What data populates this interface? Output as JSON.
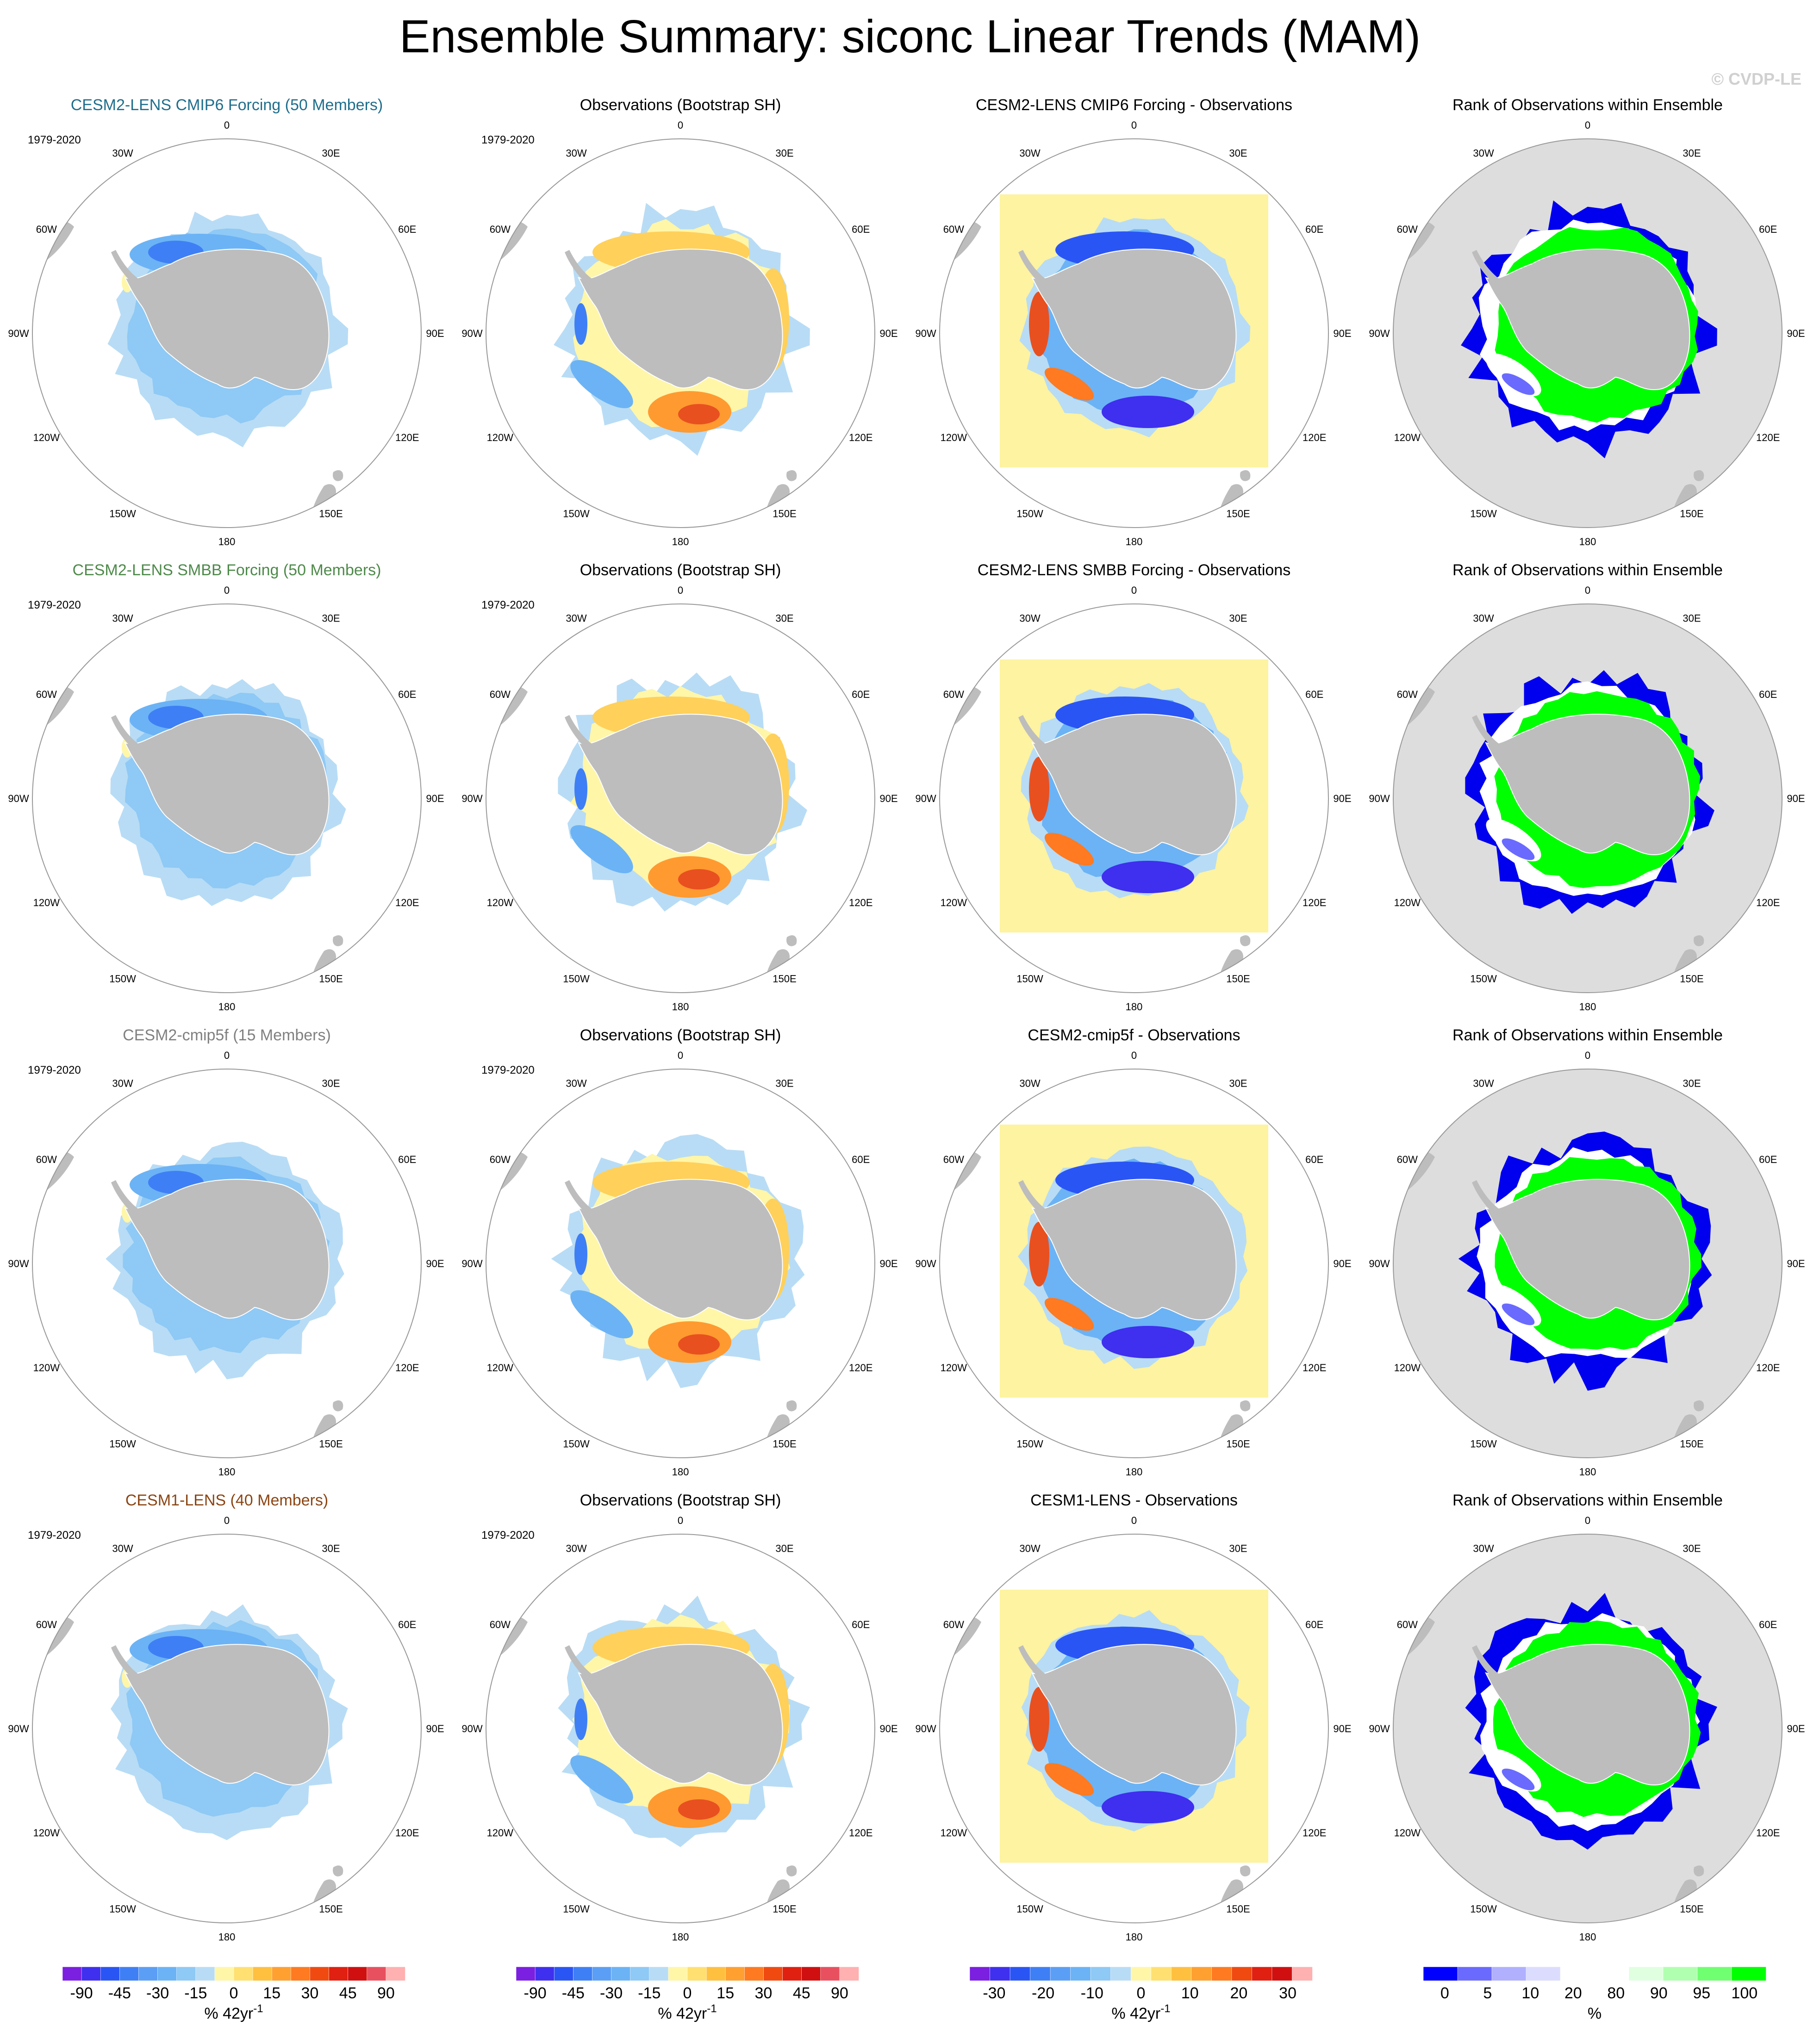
{
  "page": {
    "title": "Ensemble Summary: siconc Linear Trends (MAM)",
    "watermark": "© CVDP-LE",
    "period": "1979-2020"
  },
  "longitude_labels": {
    "top": "0",
    "bottom": "180",
    "left": [
      "30W",
      "60W",
      "90W",
      "120W",
      "150W"
    ],
    "right": [
      "30E",
      "60E",
      "90E",
      "120E",
      "150E"
    ]
  },
  "rows": [
    {
      "model_title": "CESM2-LENS CMIP6 Forcing (50 Members)",
      "model_title_color": "#1f6e8c",
      "obs_title": "Observations (Bootstrap SH)",
      "diff_title": "CESM2-LENS CMIP6 Forcing - Observations",
      "rank_title": "Rank of Observations within Ensemble"
    },
    {
      "model_title": "CESM2-LENS SMBB Forcing (50 Members)",
      "model_title_color": "#4e8a4a",
      "obs_title": "Observations (Bootstrap SH)",
      "diff_title": "CESM2-LENS SMBB Forcing - Observations",
      "rank_title": "Rank of Observations within Ensemble"
    },
    {
      "model_title": "CESM2-cmip5f (15 Members)",
      "model_title_color": "#808080",
      "obs_title": "Observations (Bootstrap SH)",
      "diff_title": "CESM2-cmip5f - Observations",
      "rank_title": "Rank of Observations within Ensemble"
    },
    {
      "model_title": "CESM1-LENS (40 Members)",
      "model_title_color": "#8b4513",
      "obs_title": "Observations (Bootstrap SH)",
      "diff_title": "CESM1-LENS - Observations",
      "rank_title": "Rank of Observations within Ensemble"
    }
  ],
  "colorbars": [
    {
      "name": "model",
      "colors": [
        "#7b1fe0",
        "#3f2fee",
        "#2a55f5",
        "#3f7ff5",
        "#5b9ef5",
        "#6bb3f5",
        "#8fc9f5",
        "#b8dcf5",
        "#fff6a8",
        "#ffe070",
        "#ffc040",
        "#ffa030",
        "#ff7a20",
        "#f04a10",
        "#e02010",
        "#d01010",
        "#e85060",
        "#ffb0b0"
      ],
      "ticks": [
        "-90",
        "-45",
        "-30",
        "-15",
        "0",
        "15",
        "30",
        "45",
        "90"
      ],
      "units": "% 42yr",
      "units_sup": "-1"
    },
    {
      "name": "obs",
      "colors": [
        "#7b1fe0",
        "#3f2fee",
        "#2a55f5",
        "#3f7ff5",
        "#5b9ef5",
        "#6bb3f5",
        "#8fc9f5",
        "#b8dcf5",
        "#fff6a8",
        "#ffe070",
        "#ffc040",
        "#ffa030",
        "#ff7a20",
        "#f04a10",
        "#e02010",
        "#d01010",
        "#e85060",
        "#ffb0b0"
      ],
      "ticks": [
        "-90",
        "-45",
        "-30",
        "-15",
        "0",
        "15",
        "30",
        "45",
        "90"
      ],
      "units": "% 42yr",
      "units_sup": "-1"
    },
    {
      "name": "difference",
      "colors": [
        "#7b1fe0",
        "#3f2fee",
        "#2a55f5",
        "#3f7ff5",
        "#5b9ef5",
        "#6bb3f5",
        "#8fc9f5",
        "#b8dcf5",
        "#fff6a8",
        "#ffe070",
        "#ffc040",
        "#ffa030",
        "#ff7a20",
        "#f04a10",
        "#e02010",
        "#d01010",
        "#ffb0b0"
      ],
      "ticks": [
        "-30",
        "-20",
        "-10",
        "0",
        "10",
        "20",
        "30"
      ],
      "units": "% 42yr",
      "units_sup": "-1"
    },
    {
      "name": "rank",
      "colors": [
        "#0000ff",
        "#6a6aff",
        "#b0b0ff",
        "#dcdcff",
        "#ffffff",
        "#ffffff",
        "#e0ffe0",
        "#b0ffb0",
        "#70ff70",
        "#00ff00"
      ],
      "ticks": [
        "0",
        "5",
        "10",
        "20",
        "80",
        "90",
        "95",
        "100"
      ],
      "units": "%",
      "units_sup": ""
    }
  ],
  "colors": {
    "land": "#bdbdbd",
    "circle_outline": "#999999",
    "rank_background": "#dddddd",
    "diff_background": "#fdf3a1",
    "ice_light": "#b8dcf5",
    "ice_mid": "#6bb3f5",
    "ice_dark": "#3f7ff5",
    "obs_yellow": "#ffd05a",
    "obs_orange": "#ff9a30",
    "obs_red": "#e85020",
    "rank_green": "#00ff00",
    "rank_blue": "#0000ee"
  }
}
